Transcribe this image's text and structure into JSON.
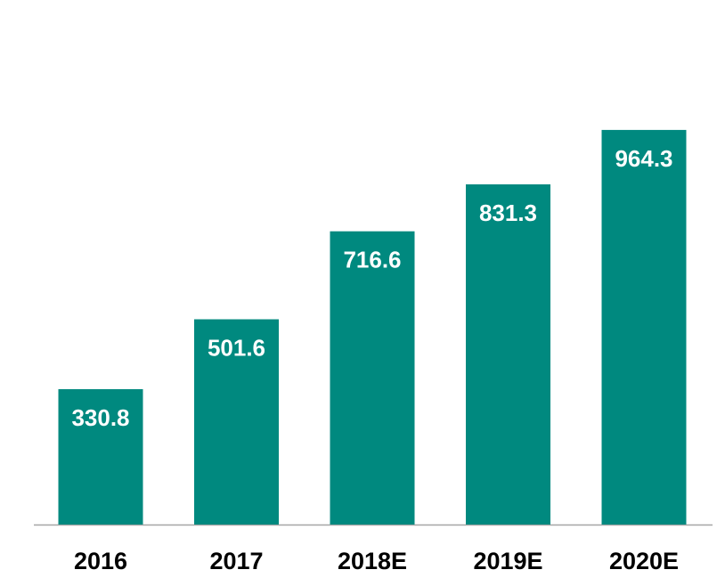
{
  "chart_data": {
    "type": "bar",
    "categories": [
      "2016",
      "2017",
      "2018E",
      "2019E",
      "2020E"
    ],
    "values": [
      330.8,
      501.6,
      716.6,
      831.3,
      964.3
    ],
    "color": "#00897f"
  }
}
